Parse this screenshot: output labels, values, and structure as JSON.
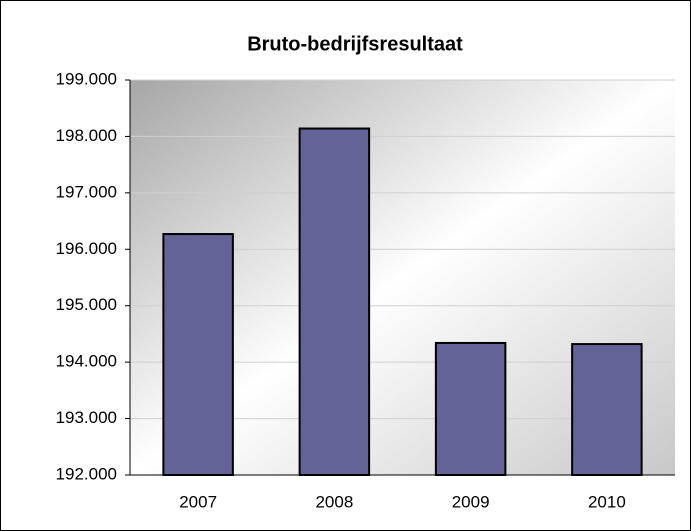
{
  "chart_data": {
    "type": "bar",
    "title": "Bruto-bedrijfsresultaat",
    "categories": [
      "2007",
      "2008",
      "2009",
      "2010"
    ],
    "values": [
      196270,
      198140,
      194340,
      194320
    ],
    "color": "#636397",
    "ylim": [
      192000,
      199000
    ],
    "yticks": [
      {
        "value": 192000,
        "label": "192.000"
      },
      {
        "value": 193000,
        "label": "193.000"
      },
      {
        "value": 194000,
        "label": "194.000"
      },
      {
        "value": 195000,
        "label": "195.000"
      },
      {
        "value": 196000,
        "label": "196.000"
      },
      {
        "value": 197000,
        "label": "197.000"
      },
      {
        "value": 198000,
        "label": "198.000"
      },
      {
        "value": 199000,
        "label": "199.000"
      }
    ],
    "grid": true
  }
}
